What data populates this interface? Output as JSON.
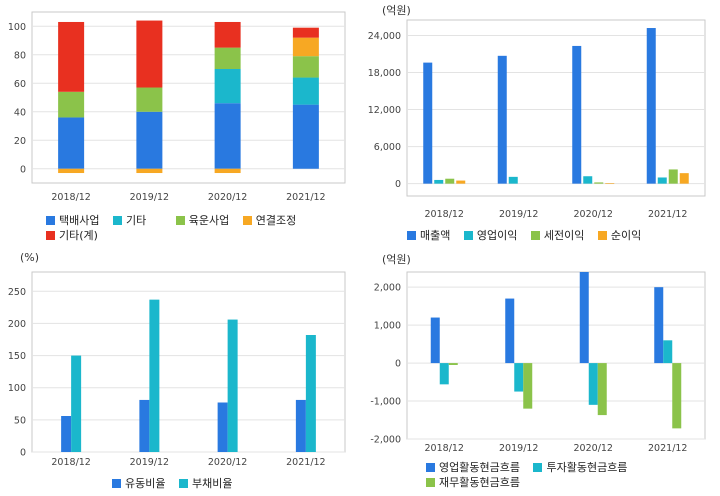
{
  "colors": {
    "blue": "#2979e0",
    "teal": "#1bb7cc",
    "green": "#8bc34a",
    "orange": "#f7a823",
    "red": "#e83020",
    "grid": "#e3e3e3",
    "frame": "#c9c9c9"
  },
  "chart_data": [
    {
      "type": "bar",
      "stacked": true,
      "title": "",
      "unit": "",
      "categories": [
        "2018/12",
        "2019/12",
        "2020/12",
        "2021/12"
      ],
      "ylim": [
        -10,
        110
      ],
      "yticks": [
        0,
        20,
        40,
        60,
        80,
        100
      ],
      "grid": true,
      "series": [
        {
          "name": "택배사업",
          "color": "#2979e0",
          "values": [
            36,
            40,
            46,
            45
          ]
        },
        {
          "name": "기타",
          "color": "#1bb7cc",
          "values": [
            0,
            0,
            24,
            19
          ]
        },
        {
          "name": "육운사업",
          "color": "#8bc34a",
          "values": [
            18,
            17,
            15,
            15
          ]
        },
        {
          "name": "연결조정",
          "color": "#f7a823",
          "values": [
            -3,
            -3,
            -3,
            13
          ]
        },
        {
          "name": "기타(계)",
          "color": "#e83020",
          "values": [
            49,
            47,
            18,
            7
          ]
        }
      ]
    },
    {
      "type": "bar",
      "title": "",
      "unit": "(억원)",
      "categories": [
        "2018/12",
        "2019/12",
        "2020/12",
        "2021/12"
      ],
      "ylim": [
        -2000,
        26500
      ],
      "yticks": [
        0,
        6000,
        12000,
        18000,
        24000
      ],
      "grid": true,
      "series": [
        {
          "name": "매출액",
          "color": "#2979e0",
          "values": [
            19600,
            20700,
            22300,
            25200
          ]
        },
        {
          "name": "영업이익",
          "color": "#1bb7cc",
          "values": [
            600,
            1100,
            1200,
            1000
          ]
        },
        {
          "name": "세전이익",
          "color": "#8bc34a",
          "values": [
            800,
            0,
            200,
            2300
          ]
        },
        {
          "name": "순이익",
          "color": "#f7a823",
          "values": [
            500,
            0,
            100,
            1700
          ]
        }
      ]
    },
    {
      "type": "bar",
      "title": "",
      "unit": "(%)",
      "categories": [
        "2018/12",
        "2019/12",
        "2020/12",
        "2021/12"
      ],
      "ylim": [
        0,
        280
      ],
      "yticks": [
        0,
        50,
        100,
        150,
        200,
        250
      ],
      "grid": true,
      "series": [
        {
          "name": "유동비율",
          "color": "#2979e0",
          "values": [
            56,
            81,
            77,
            81
          ]
        },
        {
          "name": "부채비율",
          "color": "#1bb7cc",
          "values": [
            150,
            237,
            206,
            182
          ]
        }
      ]
    },
    {
      "type": "bar",
      "title": "",
      "unit": "(억원)",
      "categories": [
        "2018/12",
        "2019/12",
        "2020/12",
        "2021/12"
      ],
      "ylim": [
        -2000,
        2400
      ],
      "yticks": [
        -2000,
        -1000,
        0,
        1000,
        2000
      ],
      "ytick_labels": [
        "-2,000",
        "-1,000",
        "0",
        "1,000",
        "2,000"
      ],
      "grid": true,
      "series": [
        {
          "name": "영업활동현금흐름",
          "color": "#2979e0",
          "values": [
            1200,
            1700,
            2400,
            2000
          ]
        },
        {
          "name": "투자활동현금흐름",
          "color": "#1bb7cc",
          "values": [
            -560,
            -750,
            -1100,
            600
          ]
        },
        {
          "name": "재무활동현금흐름",
          "color": "#8bc34a",
          "values": [
            -50,
            -1200,
            -1370,
            -1720
          ]
        }
      ]
    }
  ]
}
